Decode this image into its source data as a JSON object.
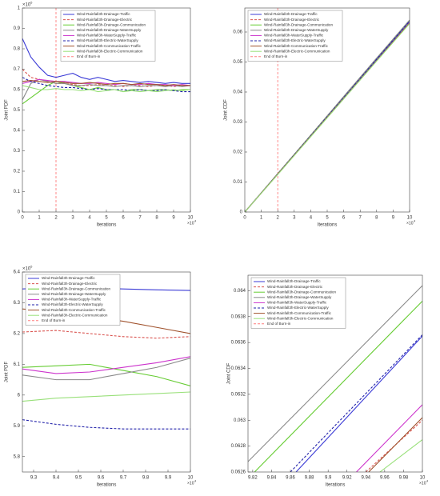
{
  "chart_data": [
    {
      "type": "line",
      "xlabel": "Iterations",
      "ylabel": "Joint PDF",
      "y_scale": {
        "base": "×10",
        "power": "-5"
      },
      "x_scale": {
        "base": "×10",
        "power": "4"
      },
      "xlim": [
        0,
        10
      ],
      "xticks": [
        0,
        1,
        2,
        3,
        4,
        5,
        6,
        7,
        8,
        9,
        10
      ],
      "ylim": [
        0,
        1
      ],
      "yticks": [
        0,
        0.1,
        0.2,
        0.3,
        0.4,
        0.5,
        0.6,
        0.7,
        0.8,
        0.9,
        1
      ],
      "legend": "northeast",
      "x": [
        0,
        0.5,
        1,
        1.5,
        2,
        2.5,
        3,
        3.5,
        4,
        4.5,
        5,
        5.5,
        6,
        6.5,
        7,
        7.5,
        8,
        8.5,
        9,
        9.5,
        10
      ],
      "series": [
        {
          "name": "Wind-Rainfall3h-Drainage-Traffic",
          "color": "#3b3bd6",
          "dash": false,
          "values": [
            0.85,
            0.76,
            0.71,
            0.67,
            0.66,
            0.67,
            0.68,
            0.66,
            0.65,
            0.66,
            0.65,
            0.64,
            0.645,
            0.64,
            0.635,
            0.64,
            0.635,
            0.63,
            0.635,
            0.63,
            0.63
          ]
        },
        {
          "name": "Wind-Rainfall3h-Drainage-Electric",
          "color": "#d9534f",
          "dash": true,
          "values": [
            0.7,
            0.66,
            0.65,
            0.64,
            0.63,
            0.63,
            0.625,
            0.62,
            0.62,
            0.625,
            0.62,
            0.62,
            0.615,
            0.62,
            0.62,
            0.615,
            0.62,
            0.62,
            0.615,
            0.62,
            0.62
          ]
        },
        {
          "name": "Wind-Rainfall3h-Drainage-Communication",
          "color": "#66cc33",
          "dash": false,
          "values": [
            0.53,
            0.56,
            0.59,
            0.62,
            0.64,
            0.63,
            0.62,
            0.61,
            0.6,
            0.61,
            0.6,
            0.6,
            0.59,
            0.6,
            0.6,
            0.595,
            0.6,
            0.6,
            0.595,
            0.6,
            0.6
          ]
        },
        {
          "name": "Wind-Rainfall3h-Drainage-WaterSupply",
          "color": "#8a8a8a",
          "dash": false,
          "values": [
            0.55,
            0.63,
            0.65,
            0.64,
            0.63,
            0.63,
            0.62,
            0.62,
            0.625,
            0.62,
            0.62,
            0.615,
            0.62,
            0.62,
            0.615,
            0.62,
            0.62,
            0.615,
            0.62,
            0.615,
            0.62
          ]
        },
        {
          "name": "Wind-Rainfall3h-WaterSupply-Traffic",
          "color": "#cc33cc",
          "dash": false,
          "values": [
            0.63,
            0.64,
            0.65,
            0.645,
            0.64,
            0.64,
            0.635,
            0.63,
            0.63,
            0.635,
            0.63,
            0.625,
            0.63,
            0.625,
            0.625,
            0.63,
            0.625,
            0.625,
            0.62,
            0.625,
            0.62
          ]
        },
        {
          "name": "Wind-Rainfall3h-Electric-WaterSupply",
          "color": "#2222aa",
          "dash": true,
          "values": [
            0.66,
            0.64,
            0.63,
            0.62,
            0.615,
            0.61,
            0.61,
            0.605,
            0.6,
            0.605,
            0.6,
            0.6,
            0.6,
            0.595,
            0.6,
            0.595,
            0.595,
            0.6,
            0.595,
            0.59,
            0.59
          ]
        },
        {
          "name": "Wind-Rainfall3h-Communication-Traffic",
          "color": "#a0522d",
          "dash": false,
          "values": [
            0.64,
            0.645,
            0.64,
            0.635,
            0.64,
            0.635,
            0.63,
            0.63,
            0.635,
            0.63,
            0.625,
            0.63,
            0.63,
            0.625,
            0.63,
            0.625,
            0.625,
            0.62,
            0.625,
            0.62,
            0.62
          ]
        },
        {
          "name": "Wind-Rainfall3h-Electric-Communication",
          "color": "#99e07a",
          "dash": false,
          "values": [
            0.62,
            0.61,
            0.6,
            0.6,
            0.605,
            0.6,
            0.6,
            0.595,
            0.6,
            0.59,
            0.595,
            0.6,
            0.59,
            0.595,
            0.59,
            0.595,
            0.59,
            0.595,
            0.6,
            0.595,
            0.6
          ]
        }
      ],
      "burn_in": {
        "name": "End of Burn-in",
        "x": 2,
        "color": "#ff7f7f"
      }
    },
    {
      "type": "line",
      "xlabel": "Iterations",
      "ylabel": "Joint CDF",
      "x_scale": {
        "base": "×10",
        "power": "4"
      },
      "xlim": [
        0,
        10
      ],
      "xticks": [
        0,
        1,
        2,
        3,
        4,
        5,
        6,
        7,
        8,
        9,
        10
      ],
      "ylim": [
        0,
        0.068
      ],
      "yticks": [
        0,
        0.01,
        0.02,
        0.03,
        0.04,
        0.05,
        0.06
      ],
      "legend": "northwest",
      "x": [
        0,
        2,
        4,
        6,
        8,
        10
      ],
      "series": [
        {
          "name": "Wind-Rainfall3h-Drainage-Traffic",
          "color": "#3b3bd6",
          "dash": false,
          "values": [
            0,
            0.0127,
            0.0254,
            0.0381,
            0.0508,
            0.0636
          ]
        },
        {
          "name": "Wind-Rainfall3h-Drainage-Electric",
          "color": "#d9534f",
          "dash": true,
          "values": [
            0,
            0.0126,
            0.0252,
            0.0378,
            0.0505,
            0.063
          ]
        },
        {
          "name": "Wind-Rainfall3h-Drainage-Communication",
          "color": "#66cc33",
          "dash": false,
          "values": [
            0,
            0.0128,
            0.0256,
            0.0384,
            0.0512,
            0.0639
          ]
        },
        {
          "name": "Wind-Rainfall3h-Drainage-WaterSupply",
          "color": "#8a8a8a",
          "dash": false,
          "values": [
            0,
            0.0128,
            0.0256,
            0.0385,
            0.0513,
            0.064
          ]
        },
        {
          "name": "Wind-Rainfall3h-WaterSupply-Traffic",
          "color": "#cc33cc",
          "dash": false,
          "values": [
            0,
            0.0126,
            0.0252,
            0.0379,
            0.0505,
            0.0631
          ]
        },
        {
          "name": "Wind-Rainfall3h-Electric-WaterSupply",
          "color": "#2222aa",
          "dash": true,
          "values": [
            0,
            0.0127,
            0.0254,
            0.0381,
            0.0509,
            0.0636
          ]
        },
        {
          "name": "Wind-Rainfall3h-Communication-Traffic",
          "color": "#a0522d",
          "dash": false,
          "values": [
            0,
            0.0126,
            0.0252,
            0.0378,
            0.0504,
            0.063
          ]
        },
        {
          "name": "Wind-Rainfall3h-Electric-Communication",
          "color": "#99e07a",
          "dash": false,
          "values": [
            0,
            0.0125,
            0.0251,
            0.0377,
            0.0503,
            0.0628
          ]
        }
      ],
      "burn_in": {
        "name": "End of Burn-in",
        "x": 2,
        "color": "#ff7f7f"
      }
    },
    {
      "type": "line",
      "xlabel": "Iterations",
      "ylabel": "Joint PDF",
      "y_scale": {
        "base": "×10",
        "power": "-5"
      },
      "x_scale": {
        "base": "×10",
        "power": "4"
      },
      "xlim": [
        9.25,
        10
      ],
      "xticks": [
        9.3,
        9.4,
        9.5,
        9.6,
        9.7,
        9.8,
        9.9,
        10
      ],
      "ylim": [
        5.75,
        6.4
      ],
      "yticks": [
        5.8,
        5.9,
        6,
        6.1,
        6.2,
        6.3,
        6.4
      ],
      "legend": "northwest",
      "x": [
        9.25,
        9.4,
        9.55,
        9.7,
        9.85,
        10
      ],
      "series": [
        {
          "name": "Wind-Rainfall3h-Drainage-Traffic",
          "color": "#3b3bd6",
          "dash": false,
          "values": [
            6.345,
            6.35,
            6.348,
            6.345,
            6.342,
            6.34
          ]
        },
        {
          "name": "Wind-Rainfall3h-Drainage-Electric",
          "color": "#d9534f",
          "dash": true,
          "values": [
            6.205,
            6.21,
            6.2,
            6.19,
            6.185,
            6.19
          ]
        },
        {
          "name": "Wind-Rainfall3h-Drainage-Communication",
          "color": "#66cc33",
          "dash": false,
          "values": [
            6.09,
            6.095,
            6.1,
            6.08,
            6.06,
            6.03
          ]
        },
        {
          "name": "Wind-Rainfall3h-Drainage-WaterSupply",
          "color": "#8a8a8a",
          "dash": false,
          "values": [
            6.065,
            6.05,
            6.05,
            6.07,
            6.09,
            6.12
          ]
        },
        {
          "name": "Wind-Rainfall3h-WaterSupply-Traffic",
          "color": "#cc33cc",
          "dash": false,
          "values": [
            6.085,
            6.07,
            6.075,
            6.09,
            6.105,
            6.125
          ]
        },
        {
          "name": "Wind-Rainfall3h-Electric-WaterSupply",
          "color": "#2222aa",
          "dash": true,
          "values": [
            5.92,
            5.905,
            5.895,
            5.89,
            5.89,
            5.89
          ]
        },
        {
          "name": "Wind-Rainfall3h-Communication-Traffic",
          "color": "#a0522d",
          "dash": false,
          "values": [
            6.28,
            6.27,
            6.255,
            6.24,
            6.22,
            6.2
          ]
        },
        {
          "name": "Wind-Rainfall3h-Electric-Communication",
          "color": "#99e07a",
          "dash": false,
          "values": [
            5.98,
            5.99,
            5.995,
            6.0,
            6.005,
            6.01
          ]
        }
      ],
      "burn_in": {
        "name": "End of Burn-in",
        "x": 2,
        "color": "#ff7f7f"
      }
    },
    {
      "type": "line",
      "xlabel": "Iterations",
      "ylabel": "Joint CDF",
      "x_scale": {
        "base": "×10",
        "power": "4"
      },
      "xlim": [
        9.815,
        10
      ],
      "xticks": [
        9.82,
        9.84,
        9.86,
        9.88,
        9.9,
        9.92,
        9.94,
        9.96,
        9.98,
        10
      ],
      "ylim": [
        0.0626,
        0.06412
      ],
      "yticks": [
        0.0626,
        0.0628,
        0.063,
        0.0632,
        0.0634,
        0.0636,
        0.0638,
        0.064
      ],
      "legend": "northwest",
      "series": [
        {
          "name": "Wind-Rainfall3h-Drainage-Traffic",
          "color": "#3b3bd6",
          "dash": false,
          "x": [
            9.866,
            10
          ],
          "values": [
            0.0626,
            0.06365
          ]
        },
        {
          "name": "Wind-Rainfall3h-Drainage-Electric",
          "color": "#d9534f",
          "dash": true,
          "x": [
            9.94,
            10
          ],
          "values": [
            0.0626,
            0.063
          ]
        },
        {
          "name": "Wind-Rainfall3h-Drainage-Communication",
          "color": "#66cc33",
          "dash": false,
          "x": [
            9.822,
            10
          ],
          "values": [
            0.0626,
            0.06392
          ]
        },
        {
          "name": "Wind-Rainfall3h-Drainage-WaterSupply",
          "color": "#8a8a8a",
          "dash": false,
          "x": [
            9.815,
            10
          ],
          "values": [
            0.06268,
            0.06404
          ]
        },
        {
          "name": "Wind-Rainfall3h-WaterSupply-Traffic",
          "color": "#cc33cc",
          "dash": false,
          "x": [
            9.93,
            10
          ],
          "values": [
            0.0626,
            0.06312
          ]
        },
        {
          "name": "Wind-Rainfall3h-Electric-WaterSupply",
          "color": "#2222aa",
          "dash": true,
          "x": [
            9.86,
            10
          ],
          "values": [
            0.0626,
            0.06366
          ]
        },
        {
          "name": "Wind-Rainfall3h-Communication-Traffic",
          "color": "#a0522d",
          "dash": false,
          "x": [
            9.943,
            10
          ],
          "values": [
            0.0626,
            0.06302
          ]
        },
        {
          "name": "Wind-Rainfall3h-Electric-Communication",
          "color": "#99e07a",
          "dash": false,
          "x": [
            9.955,
            10
          ],
          "values": [
            0.0626,
            0.06285
          ]
        }
      ],
      "burn_in": {
        "name": "End of Burn-in",
        "x": 2,
        "color": "#ff7f7f"
      }
    }
  ]
}
